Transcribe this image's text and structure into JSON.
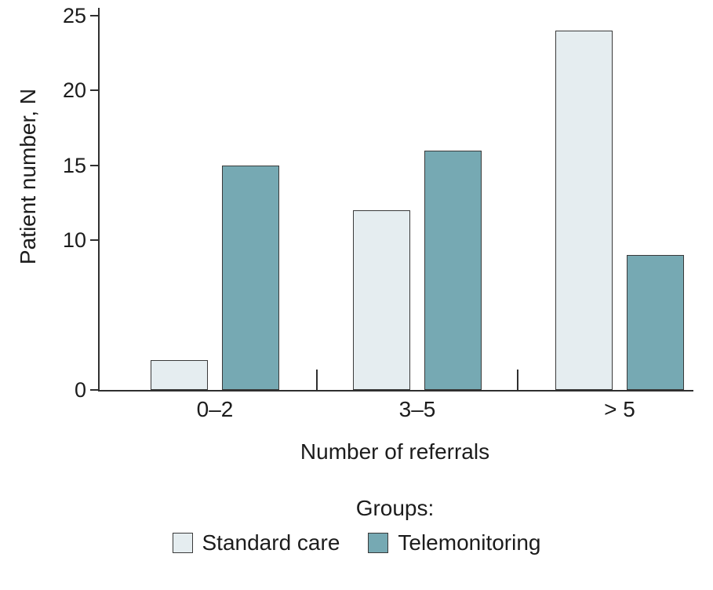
{
  "figure": {
    "background": "#ffffff",
    "axis_color": "#2f2f2f",
    "text_color": "#1c1c1c"
  },
  "chart_data": {
    "type": "bar",
    "title": "",
    "xlabel": "Number of referrals",
    "ylabel": "Patient number, N",
    "categories": [
      "0–2",
      "3–5",
      "> 5"
    ],
    "series": [
      {
        "name": "Standard care",
        "values": [
          2,
          12,
          24
        ],
        "fill": "#e5edf0",
        "border": "#3a3a3a"
      },
      {
        "name": "Telemonitoring",
        "values": [
          15,
          16,
          9
        ],
        "fill": "#76a9b3",
        "border": "#3a3a3a"
      }
    ],
    "ylim": [
      0,
      25
    ],
    "yticks": [
      0,
      10,
      15,
      20,
      25
    ],
    "grid": false,
    "legend_title": "Groups:",
    "legend_position": "bottom"
  }
}
